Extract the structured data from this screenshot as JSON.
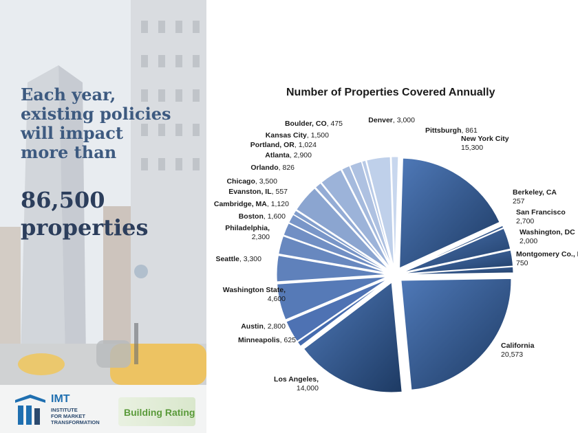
{
  "headline": {
    "lines": [
      "Each year,",
      "existing policies",
      "will impact",
      "more than"
    ],
    "number": "86,500",
    "unit": "properties"
  },
  "logos": {
    "imt_name": "IMT",
    "imt_tagline": "INSTITUTE\nFOR MARKET\nTRANSFORMATION",
    "building_rating": "Building Rating"
  },
  "colors": {
    "headline": "#3d5a80",
    "dark_slice": "#1d3a63",
    "light_slice": "#c3d1e6"
  },
  "chart_data": {
    "type": "pie",
    "title": "Number of Properties Covered Annually",
    "exploded": true,
    "slices": [
      {
        "label": "New York City",
        "value": 15300,
        "value_label": "15,300"
      },
      {
        "label": "Berkeley, CA",
        "value": 257,
        "value_label": "257"
      },
      {
        "label": "San Francisco",
        "value": 2700,
        "value_label": "2,700"
      },
      {
        "label": "Washington, DC",
        "value": 2000,
        "value_label": "2,000"
      },
      {
        "label": "Montgomery Co., MD",
        "value": 750,
        "value_label": "750"
      },
      {
        "label": "California",
        "value": 20573,
        "value_label": "20,573"
      },
      {
        "label": "Los Angeles,",
        "value": 14000,
        "value_label": "14,000"
      },
      {
        "label": "Minneapolis",
        "value": 625,
        "value_label": "625"
      },
      {
        "label": "Austin",
        "value": 2800,
        "value_label": "2,800"
      },
      {
        "label": "Washington State,",
        "value": 4600,
        "value_label": "4,600"
      },
      {
        "label": "Seattle",
        "value": 3300,
        "value_label": "3,300"
      },
      {
        "label": "Philadelphia,",
        "value": 2300,
        "value_label": "2,300"
      },
      {
        "label": "Boston",
        "value": 1600,
        "value_label": "1,600"
      },
      {
        "label": "Cambridge, MA",
        "value": 1120,
        "value_label": "1,120"
      },
      {
        "label": "Evanston, IL",
        "value": 557,
        "value_label": "557"
      },
      {
        "label": "Chicago",
        "value": 3500,
        "value_label": "3,500"
      },
      {
        "label": "Orlando",
        "value": 826,
        "value_label": "826"
      },
      {
        "label": "Atlanta",
        "value": 2900,
        "value_label": "2,900"
      },
      {
        "label": "Portland, OR",
        "value": 1024,
        "value_label": "1,024"
      },
      {
        "label": "Kansas City",
        "value": 1500,
        "value_label": "1,500"
      },
      {
        "label": "Boulder, CO",
        "value": 475,
        "value_label": "475"
      },
      {
        "label": "Denver",
        "value": 3000,
        "value_label": "3,000"
      },
      {
        "label": "Pittsburgh",
        "value": 861,
        "value_label": "861"
      }
    ]
  }
}
